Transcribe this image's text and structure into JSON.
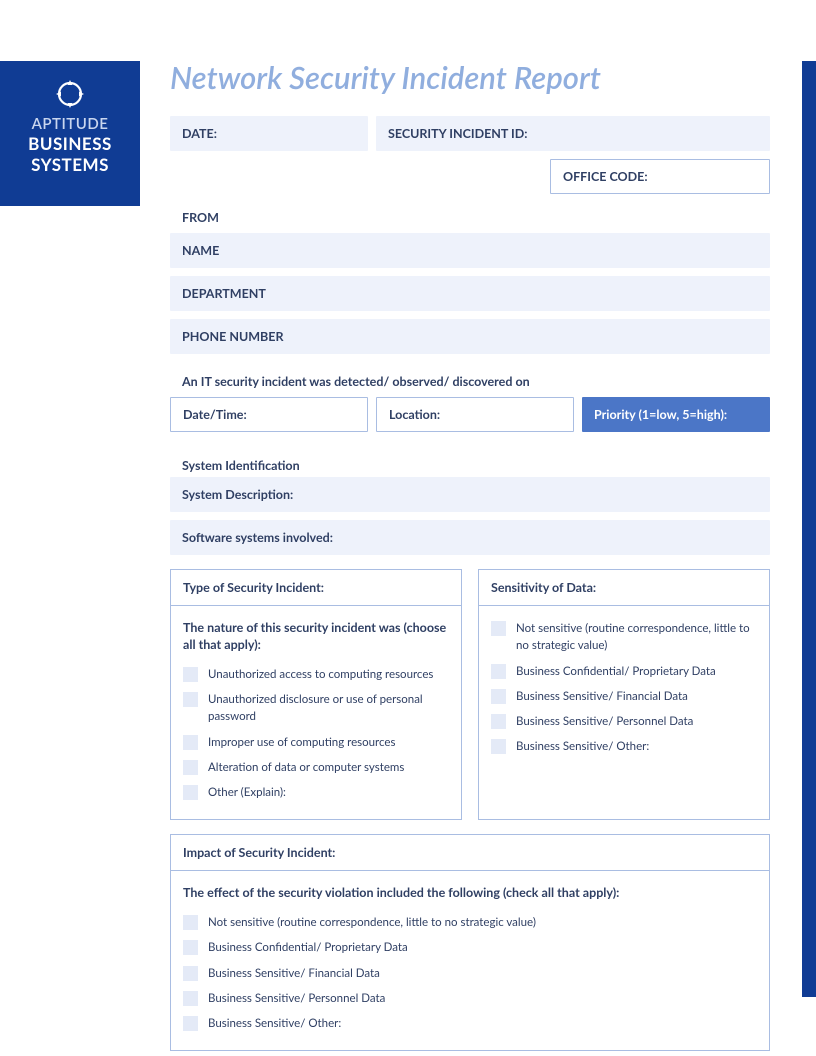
{
  "colors": {
    "brand_blue": "#103c94",
    "title_blue": "#90aede",
    "field_bg": "#eef2fb",
    "border_blue": "#a9bde2",
    "accent_blue": "#4b76c7",
    "check_bg": "#e4eaf7",
    "text_navy": "#2f3f63",
    "white": "#ffffff"
  },
  "logo": {
    "line1": "APTITUDE",
    "line2": "BUSINESS",
    "line3": "SYSTEMS"
  },
  "title": "Network Security Incident Report",
  "fields": {
    "date": "DATE:",
    "incident_id": "SECURITY INCIDENT ID:",
    "office_code": "OFFICE CODE:",
    "from": "FROM",
    "name": "NAME",
    "department": "DEPARTMENT",
    "phone": "PHONE NUMBER",
    "detection_intro": "An IT security incident was detected/ observed/ discovered on",
    "date_time": "Date/Time:",
    "location": "Location:",
    "priority": "Priority (1=low, 5=high):",
    "sys_id": "System Identification",
    "sys_desc": "System Description:",
    "software": "Software systems involved:"
  },
  "type_panel": {
    "header": "Type of Security Incident:",
    "subtitle": "The nature of this security incident was (choose all that apply):",
    "items": [
      "Unauthorized access to computing resources",
      "Unauthorized disclosure or use of personal password",
      "Improper use of computing resources",
      "Alteration of data or computer systems",
      "Other (Explain):"
    ]
  },
  "sensitivity_panel": {
    "header": "Sensitivity of Data:",
    "items": [
      "Not sensitive (routine correspondence, little to no strategic value)",
      "Business Confidential/ Proprietary Data",
      "Business Sensitive/ Financial Data",
      "Business Sensitive/ Personnel Data",
      "Business Sensitive/ Other:"
    ]
  },
  "impact_panel": {
    "header": "Impact of Security Incident:",
    "subtitle": "The effect of the security violation included the following (check all that apply):",
    "items": [
      "Not sensitive (routine correspondence, little to no strategic value)",
      "Business Confidential/ Proprietary Data",
      "Business Sensitive/ Financial Data",
      "Business Sensitive/ Personnel Data",
      "Business Sensitive/ Other:"
    ]
  }
}
